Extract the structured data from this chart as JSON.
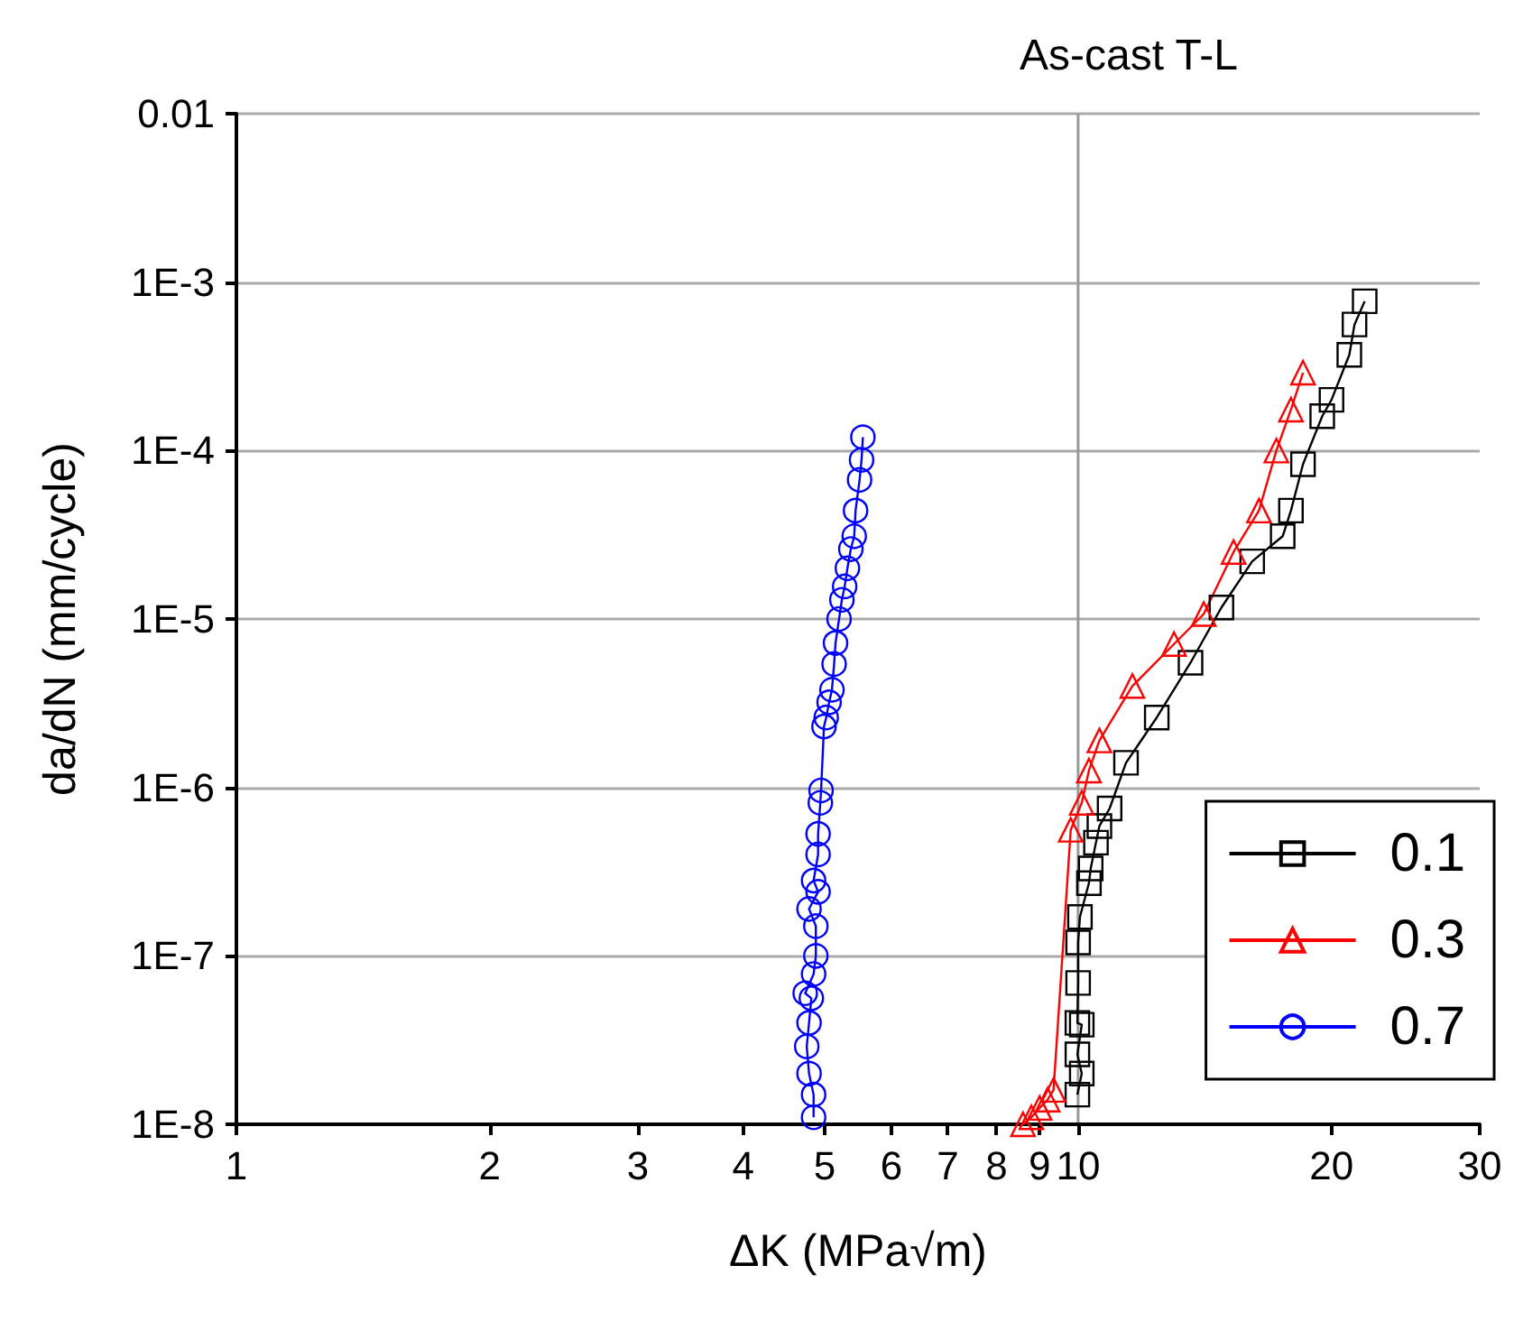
{
  "chart_data": {
    "type": "line",
    "title": "As-cast T-L",
    "xlabel": "ΔK (MPa√m)",
    "ylabel": "da/dN (mm/cycle)",
    "log": "xy",
    "grid": "y",
    "legend": "bottom right",
    "xlim": [
      1,
      30
    ],
    "xticks": [
      1,
      2,
      3,
      4,
      5,
      6,
      7,
      8,
      9,
      10,
      20,
      30
    ],
    "ylim": [
      1e-08,
      0.01
    ],
    "yticks": [
      {
        "value": 1e-08,
        "label": "1E-8"
      },
      {
        "value": 1e-07,
        "label": "1E-7"
      },
      {
        "value": 1e-06,
        "label": "1E-6"
      },
      {
        "value": 1e-05,
        "label": "1E-5"
      },
      {
        "value": 0.0001,
        "label": "1E-4"
      },
      {
        "value": 0.001,
        "label": "1E-3"
      },
      0.01
    ],
    "ref_lines": [
      {
        "axis": "x",
        "value": 10,
        "color": "#999999"
      }
    ],
    "series": [
      {
        "name": "0.1",
        "color": "#000000",
        "marker": "square",
        "x": [
          9.98,
          10.1,
          9.98,
          10.1,
          9.98,
          10.0,
          10.0,
          10.05,
          10.3,
          10.35,
          10.5,
          10.6,
          10.9,
          11.4,
          12.4,
          13.6,
          14.8,
          16.1,
          17.5,
          17.9,
          18.5,
          19.5,
          20.0,
          21.0,
          21.3,
          21.9
        ],
        "values": [
          1.5e-08,
          2e-08,
          2.6e-08,
          3.9e-08,
          4e-08,
          6.9e-08,
          1.2e-07,
          1.7e-07,
          2.7e-07,
          3.3e-07,
          4.7e-07,
          5.9e-07,
          7.5e-07,
          1.4e-06,
          2.6e-06,
          5.5e-06,
          1.17e-05,
          2.2e-05,
          3.1e-05,
          4.4e-05,
          8.3e-05,
          0.00016,
          0.0002,
          0.00037,
          0.00056,
          0.00077
        ]
      },
      {
        "name": "0.3",
        "color": "#ff0000",
        "marker": "triangle",
        "x": [
          8.6,
          8.8,
          9.0,
          9.2,
          9.35,
          9.8,
          10.1,
          10.3,
          10.6,
          11.6,
          13.0,
          14.1,
          15.3,
          16.4,
          17.2,
          17.9,
          18.5
        ],
        "values": [
          1e-08,
          1.1e-08,
          1.25e-08,
          1.4e-08,
          1.6e-08,
          5.6e-07,
          8.1e-07,
          1.26e-06,
          1.9e-06,
          4e-06,
          7.1e-06,
          1.07e-05,
          2.5e-05,
          4.4e-05,
          0.0001,
          0.000175,
          0.00029
        ]
      },
      {
        "name": "0.7",
        "color": "#0000ff",
        "marker": "circle",
        "x": [
          4.85,
          4.85,
          4.79,
          4.76,
          4.79,
          4.82,
          4.74,
          4.85,
          4.88,
          4.88,
          4.79,
          4.91,
          4.85,
          4.91,
          4.91,
          4.94,
          4.95,
          4.99,
          5.02,
          5.06,
          5.1,
          5.13,
          5.15,
          5.2,
          5.24,
          5.28,
          5.32,
          5.37,
          5.42,
          5.44,
          5.5,
          5.53,
          5.55
        ],
        "values": [
          1.1e-08,
          1.5e-08,
          2e-08,
          2.9e-08,
          4e-08,
          5.6e-08,
          6e-08,
          7.8e-08,
          1e-07,
          1.5e-07,
          1.9e-07,
          2.4e-07,
          2.8e-07,
          4e-07,
          5.3e-07,
          8.1e-07,
          9.6e-07,
          2.3e-06,
          2.6e-06,
          3.2e-06,
          3.8e-06,
          5.4e-06,
          7.2e-06,
          1e-05,
          1.3e-05,
          1.56e-05,
          2e-05,
          2.6e-05,
          3.1e-05,
          4.4e-05,
          6.7e-05,
          8.8e-05,
          0.00012
        ]
      }
    ]
  }
}
